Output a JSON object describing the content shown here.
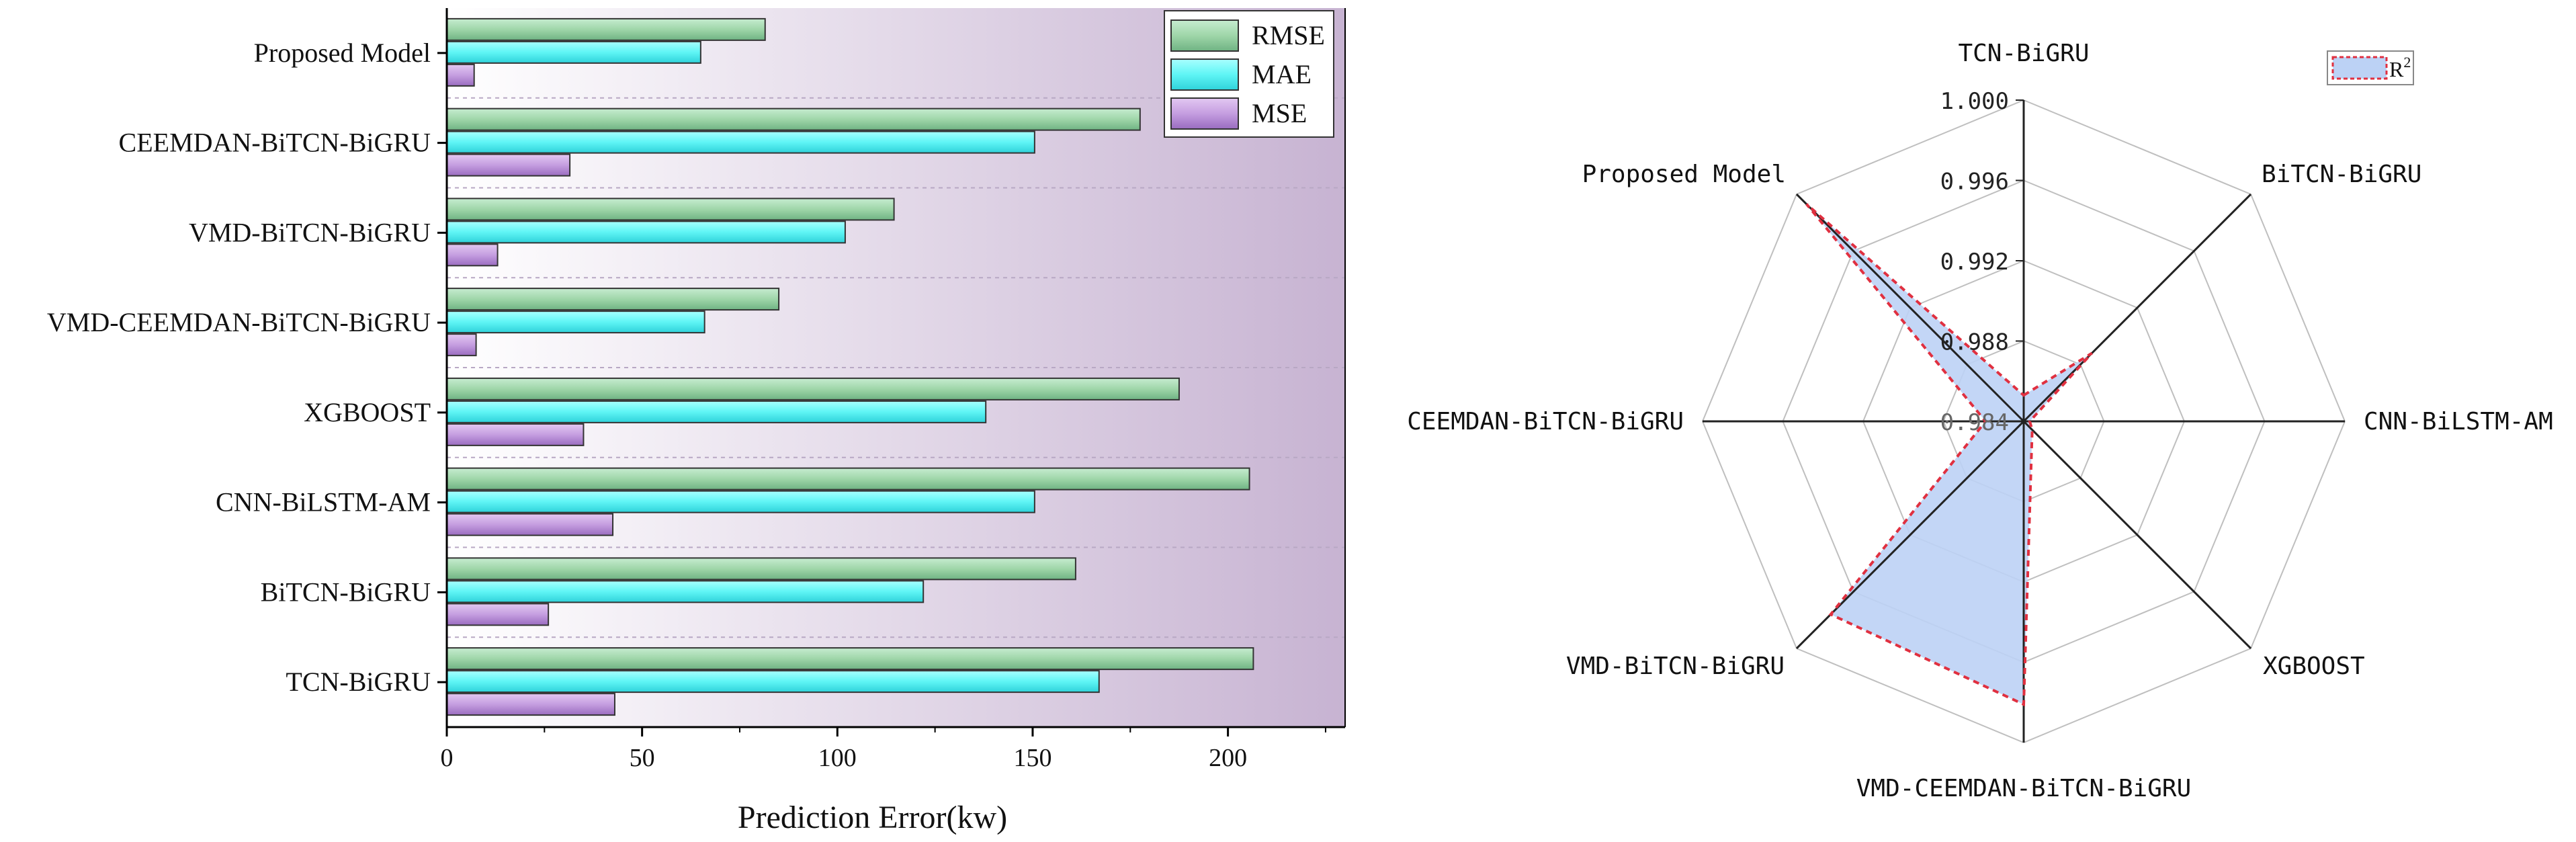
{
  "chart_data": [
    {
      "type": "bar",
      "orientation": "horizontal",
      "categories": [
        "Proposed Model",
        "CEEMDAN-BiTCN-BiGRU",
        "VMD-BiTCN-BiGRU",
        "VMD-CEEMDAN-BiTCN-BiGRU",
        "XGBOOST",
        "CNN-BiLSTM-AM",
        "BiTCN-BiGRU",
        "TCN-BiGRU"
      ],
      "series": [
        {
          "name": "RMSE",
          "color": "#9fd6a9",
          "values": [
            81.5,
            177.5,
            114.5,
            85.0,
            187.5,
            205.5,
            161.0,
            206.5
          ]
        },
        {
          "name": "MAE",
          "color": "#5ff5f5",
          "values": [
            65.0,
            150.5,
            102.0,
            66.0,
            138.0,
            150.5,
            122.0,
            167.0
          ]
        },
        {
          "name": "MSE",
          "color": "#c59ee0",
          "values": [
            7.0,
            31.5,
            13.0,
            7.5,
            35.0,
            42.5,
            26.0,
            43.0
          ]
        }
      ],
      "xlabel": "Prediction Error(kw)",
      "xlim": [
        0,
        230
      ],
      "xticks": [
        0,
        50,
        100,
        150,
        200
      ],
      "legend_position": "top-right",
      "background_gradient": [
        "#ffffff",
        "#c7b3d2"
      ]
    },
    {
      "type": "radar",
      "axes": [
        "TCN-BiGRU",
        "BiTCN-BiGRU",
        "CNN-BiLSTM-AM",
        "XGBOOST",
        "VMD-CEEMDAN-BiTCN-BiGRU",
        "VMD-BiTCN-BiGRU",
        "CEEMDAN-BiTCN-BiGRU",
        "Proposed Model"
      ],
      "series": [
        {
          "name": "R",
          "superscript": "2",
          "fill": "#bcd2f5",
          "stroke": "#e03040",
          "values": [
            0.9853,
            0.9888,
            0.9843,
            0.9846,
            0.9981,
            0.9976,
            0.9859,
            0.9993
          ]
        }
      ],
      "rlim": [
        0.984,
        1.0
      ],
      "rticks": [
        "0.984",
        "0.988",
        "0.992",
        "0.996",
        "1.000"
      ],
      "legend_position": "top-right"
    }
  ]
}
